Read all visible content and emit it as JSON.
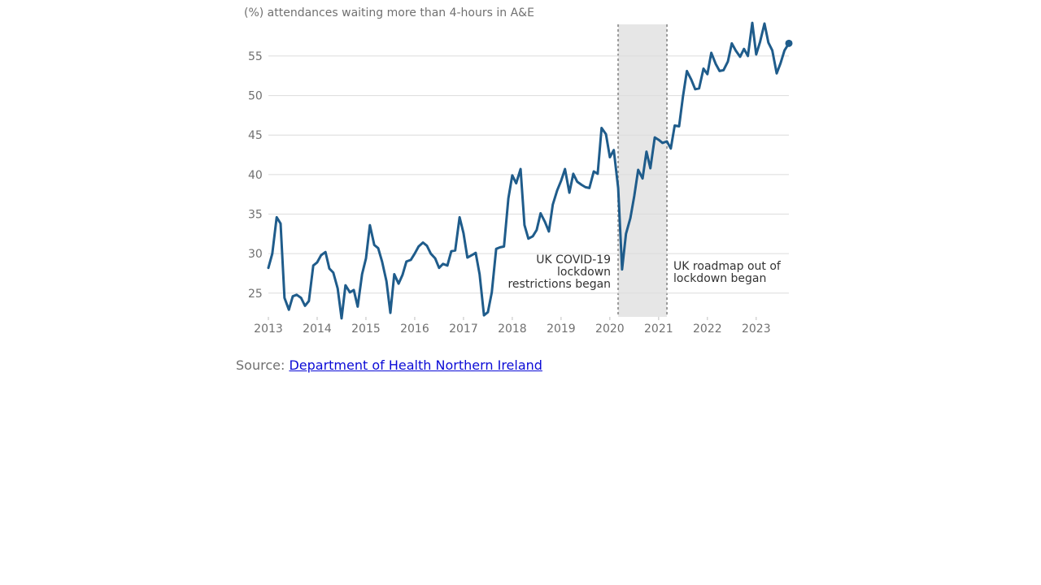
{
  "source": {
    "prefix": "Source:",
    "link_text": "Department of Health Northern Ireland"
  },
  "chart_data": {
    "type": "line",
    "title": "",
    "ylabel": "(%) attendances waiting more than 4-hours in A&E",
    "xlabel": "",
    "ylim": [
      22,
      59
    ],
    "xlim": [
      2013.0,
      2023.67
    ],
    "y_ticks": [
      25,
      30,
      35,
      40,
      45,
      50,
      55
    ],
    "x_ticks": [
      2013,
      2014,
      2015,
      2016,
      2017,
      2018,
      2019,
      2020,
      2021,
      2022,
      2023
    ],
    "grid": "horizontal",
    "colors": {
      "line": "#1f5c8b",
      "shade": "#e6e6e6",
      "marker": "#1f5c8b"
    },
    "shaded_period": {
      "start": 2020.17,
      "end": 2021.17,
      "start_label": [
        "UK COVID-19",
        "lockdown",
        "restrictions began"
      ],
      "end_label": [
        "UK roadmap out of",
        "lockdown began"
      ]
    },
    "series": [
      {
        "x": [
          2013.0,
          2013.08,
          2013.17,
          2013.25,
          2013.33,
          2013.42,
          2013.5,
          2013.58,
          2013.67,
          2013.75,
          2013.83,
          2013.92,
          2014.0,
          2014.08,
          2014.17,
          2014.25,
          2014.33,
          2014.42,
          2014.5,
          2014.58,
          2014.67,
          2014.75,
          2014.83,
          2014.92,
          2015.0,
          2015.08,
          2015.17,
          2015.25,
          2015.33,
          2015.42,
          2015.5,
          2015.58,
          2015.67,
          2015.75,
          2015.83,
          2015.92,
          2016.0,
          2016.08,
          2016.17,
          2016.25,
          2016.33,
          2016.42,
          2016.5,
          2016.58,
          2016.67,
          2016.75,
          2016.83,
          2016.92,
          2017.0,
          2017.08,
          2017.17,
          2017.25,
          2017.33,
          2017.42,
          2017.5,
          2017.58,
          2017.67,
          2017.75,
          2017.83,
          2017.92,
          2018.0,
          2018.08,
          2018.17,
          2018.25,
          2018.33,
          2018.42,
          2018.5,
          2018.58,
          2018.67,
          2018.75,
          2018.83,
          2018.92,
          2019.0,
          2019.08,
          2019.17,
          2019.25,
          2019.33,
          2019.42,
          2019.5,
          2019.58,
          2019.67,
          2019.75,
          2019.83,
          2019.92,
          2020.0,
          2020.08,
          2020.17,
          2020.25,
          2020.33,
          2020.42,
          2020.5,
          2020.58,
          2020.67,
          2020.75,
          2020.83,
          2020.92,
          2021.0,
          2021.08,
          2021.17,
          2021.25,
          2021.33,
          2021.42,
          2021.5,
          2021.58,
          2021.67,
          2021.75,
          2021.83,
          2021.92,
          2022.0,
          2022.08,
          2022.17,
          2022.25,
          2022.33,
          2022.42,
          2022.5,
          2022.58,
          2022.67,
          2022.75,
          2022.83,
          2022.92,
          2023.0,
          2023.08,
          2023.17,
          2023.25,
          2023.33,
          2023.42,
          2023.5,
          2023.58,
          2023.67
        ],
        "y": [
          28.2,
          30.0,
          34.6,
          33.8,
          24.4,
          22.9,
          24.6,
          24.8,
          24.4,
          23.4,
          24.0,
          28.5,
          28.9,
          29.8,
          30.2,
          28.1,
          27.6,
          25.6,
          21.8,
          26.0,
          25.1,
          25.4,
          23.3,
          27.4,
          29.4,
          33.6,
          31.1,
          30.7,
          29.0,
          26.5,
          22.5,
          27.4,
          26.2,
          27.3,
          29.0,
          29.2,
          30.0,
          30.9,
          31.4,
          31.0,
          30.0,
          29.4,
          28.2,
          28.7,
          28.5,
          30.3,
          30.4,
          34.6,
          32.6,
          29.5,
          29.8,
          30.1,
          27.4,
          22.2,
          22.6,
          25.1,
          30.6,
          30.8,
          30.9,
          37.0,
          39.9,
          38.9,
          40.7,
          33.6,
          31.9,
          32.2,
          33.0,
          35.1,
          34.0,
          32.8,
          36.2,
          38.0,
          39.2,
          40.7,
          37.7,
          40.1,
          39.1,
          38.7,
          38.4,
          38.3,
          40.4,
          40.1,
          45.9,
          45.1,
          42.2,
          43.1,
          38.3,
          28.0,
          32.5,
          34.5,
          37.3,
          40.6,
          39.5,
          42.9,
          40.8,
          44.7,
          44.4,
          44.0,
          44.2,
          43.3,
          46.2,
          46.1,
          49.9,
          53.1,
          52.0,
          50.8,
          50.9,
          53.4,
          52.7,
          55.4,
          54.0,
          53.1,
          53.2,
          54.3,
          56.6,
          55.7,
          54.9,
          55.9,
          55.0,
          59.2,
          55.2,
          56.8,
          59.1,
          56.7,
          55.7,
          52.8,
          54.1,
          55.7,
          56.6
        ]
      }
    ]
  }
}
